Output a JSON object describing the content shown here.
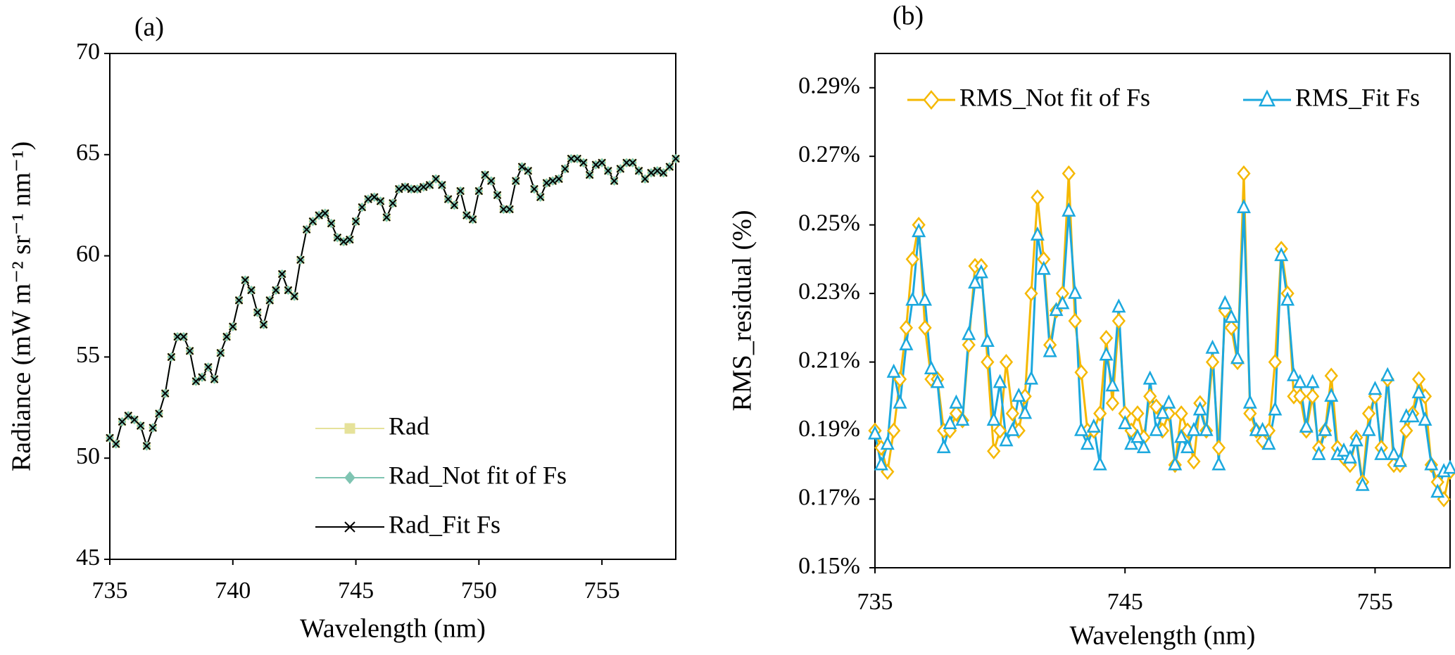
{
  "chart_data": [
    {
      "type": "line",
      "title": "(a)",
      "xlabel": "Wavelength  (nm)",
      "ylabel": "Radiance (mW m⁻² sr⁻¹ nm⁻¹)",
      "x": [
        735,
        735.25,
        735.5,
        735.75,
        736,
        736.25,
        736.5,
        736.75,
        737,
        737.25,
        737.5,
        737.75,
        738,
        738.25,
        738.5,
        738.75,
        739,
        739.25,
        739.5,
        739.75,
        740,
        740.25,
        740.5,
        740.75,
        741,
        741.25,
        741.5,
        741.75,
        742,
        742.25,
        742.5,
        742.75,
        743,
        743.25,
        743.5,
        743.75,
        744,
        744.25,
        744.5,
        744.75,
        745,
        745.25,
        745.5,
        745.75,
        746,
        746.25,
        746.5,
        746.75,
        747,
        747.25,
        747.5,
        747.75,
        748,
        748.25,
        748.5,
        748.75,
        749,
        749.25,
        749.5,
        749.75,
        750,
        750.25,
        750.5,
        750.75,
        751,
        751.25,
        751.5,
        751.75,
        752,
        752.25,
        752.5,
        752.75,
        753,
        753.25,
        753.5,
        753.75,
        754,
        754.25,
        754.5,
        754.75,
        755,
        755.25,
        755.5,
        755.75,
        756,
        756.25,
        756.5,
        756.75,
        757,
        757.25,
        757.5,
        757.75,
        758
      ],
      "series": [
        {
          "name": "Rad",
          "color": "#e6e29a",
          "marker": "square",
          "marker_fill": true,
          "values": [
            51,
            50.7,
            51.8,
            52.1,
            51.9,
            51.6,
            50.6,
            51.5,
            52.2,
            53.2,
            55,
            56,
            56,
            55.3,
            53.8,
            54,
            54.5,
            53.9,
            55.2,
            56,
            56.5,
            57.8,
            58.8,
            58.3,
            57.2,
            56.6,
            57.8,
            58.3,
            59.1,
            58.3,
            58,
            59.8,
            61.3,
            61.7,
            62,
            62.1,
            61.6,
            60.9,
            60.7,
            60.8,
            61.7,
            62.4,
            62.8,
            62.9,
            62.7,
            61.9,
            62.6,
            63.3,
            63.4,
            63.3,
            63.3,
            63.4,
            63.5,
            63.8,
            63.5,
            62.8,
            62.5,
            63.2,
            62,
            61.8,
            63.2,
            64,
            63.7,
            63,
            62.3,
            62.3,
            63.7,
            64.4,
            64.2,
            63.3,
            62.9,
            63.6,
            63.7,
            63.8,
            64.3,
            64.8,
            64.8,
            64.6,
            64,
            64.5,
            64.6,
            64.2,
            63.7,
            64.3,
            64.6,
            64.6,
            64.2,
            63.8,
            64.1,
            64.2,
            64.1,
            64.4,
            64.8
          ]
        },
        {
          "name": "Rad_Not fit of Fs",
          "color": "#7fc4b2",
          "marker": "diamond",
          "marker_fill": true,
          "values": [
            51,
            50.7,
            51.8,
            52.1,
            51.9,
            51.6,
            50.6,
            51.5,
            52.2,
            53.2,
            55,
            56,
            56,
            55.3,
            53.8,
            54,
            54.5,
            53.9,
            55.2,
            56,
            56.5,
            57.8,
            58.8,
            58.3,
            57.2,
            56.6,
            57.8,
            58.3,
            59.1,
            58.3,
            58,
            59.8,
            61.3,
            61.7,
            62,
            62.1,
            61.6,
            60.9,
            60.7,
            60.8,
            61.7,
            62.4,
            62.8,
            62.9,
            62.7,
            61.9,
            62.6,
            63.3,
            63.4,
            63.3,
            63.3,
            63.4,
            63.5,
            63.8,
            63.5,
            62.8,
            62.5,
            63.2,
            62,
            61.8,
            63.2,
            64,
            63.7,
            63,
            62.3,
            62.3,
            63.7,
            64.4,
            64.2,
            63.3,
            62.9,
            63.6,
            63.7,
            63.8,
            64.3,
            64.8,
            64.8,
            64.6,
            64,
            64.5,
            64.6,
            64.2,
            63.7,
            64.3,
            64.6,
            64.6,
            64.2,
            63.8,
            64.1,
            64.2,
            64.1,
            64.4,
            64.8
          ]
        },
        {
          "name": "Rad_Fit Fs",
          "color": "#000000",
          "marker": "x",
          "marker_fill": true,
          "values": [
            51,
            50.7,
            51.8,
            52.1,
            51.9,
            51.6,
            50.6,
            51.5,
            52.2,
            53.2,
            55,
            56,
            56,
            55.3,
            53.8,
            54,
            54.5,
            53.9,
            55.2,
            56,
            56.5,
            57.8,
            58.8,
            58.3,
            57.2,
            56.6,
            57.8,
            58.3,
            59.1,
            58.3,
            58,
            59.8,
            61.3,
            61.7,
            62,
            62.1,
            61.6,
            60.9,
            60.7,
            60.8,
            61.7,
            62.4,
            62.8,
            62.9,
            62.7,
            61.9,
            62.6,
            63.3,
            63.4,
            63.3,
            63.3,
            63.4,
            63.5,
            63.8,
            63.5,
            62.8,
            62.5,
            63.2,
            62,
            61.8,
            63.2,
            64,
            63.7,
            63,
            62.3,
            62.3,
            63.7,
            64.4,
            64.2,
            63.3,
            62.9,
            63.6,
            63.7,
            63.8,
            64.3,
            64.8,
            64.8,
            64.6,
            64,
            64.5,
            64.6,
            64.2,
            63.7,
            64.3,
            64.6,
            64.6,
            64.2,
            63.8,
            64.1,
            64.2,
            64.1,
            64.4,
            64.8
          ]
        }
      ],
      "xlim": [
        735,
        758
      ],
      "xticks": [
        735,
        740,
        745,
        750,
        755
      ],
      "ylim": [
        45,
        70
      ],
      "yticks": [
        45,
        50,
        55,
        60,
        65,
        70
      ],
      "legend": "lower center"
    },
    {
      "type": "line",
      "title": "(b)",
      "xlabel": "Wavelength  (nm)",
      "ylabel": "RMS_residual (%)",
      "x": [
        735,
        735.25,
        735.5,
        735.75,
        736,
        736.25,
        736.5,
        736.75,
        737,
        737.25,
        737.5,
        737.75,
        738,
        738.25,
        738.5,
        738.75,
        739,
        739.25,
        739.5,
        739.75,
        740,
        740.25,
        740.5,
        740.75,
        741,
        741.25,
        741.5,
        741.75,
        742,
        742.25,
        742.5,
        742.75,
        743,
        743.25,
        743.5,
        743.75,
        744,
        744.25,
        744.5,
        744.75,
        745,
        745.25,
        745.5,
        745.75,
        746,
        746.25,
        746.5,
        746.75,
        747,
        747.25,
        747.5,
        747.75,
        748,
        748.25,
        748.5,
        748.75,
        749,
        749.25,
        749.5,
        749.75,
        750,
        750.25,
        750.5,
        750.75,
        751,
        751.25,
        751.5,
        751.75,
        752,
        752.25,
        752.5,
        752.75,
        753,
        753.25,
        753.5,
        753.75,
        754,
        754.25,
        754.5,
        754.75,
        755,
        755.25,
        755.5,
        755.75,
        756,
        756.25,
        756.5,
        756.75,
        757,
        757.25,
        757.5,
        757.75,
        758
      ],
      "series": [
        {
          "name": "RMS_Not fit of Fs",
          "color": "#f5b800",
          "marker": "diamond",
          "marker_fill": false,
          "values": [
            0.19,
            0.185,
            0.178,
            0.19,
            0.205,
            0.22,
            0.24,
            0.25,
            0.22,
            0.205,
            0.205,
            0.19,
            0.19,
            0.195,
            0.193,
            0.215,
            0.238,
            0.238,
            0.21,
            0.184,
            0.19,
            0.21,
            0.195,
            0.19,
            0.2,
            0.23,
            0.258,
            0.24,
            0.215,
            0.225,
            0.23,
            0.265,
            0.222,
            0.207,
            0.19,
            0.19,
            0.195,
            0.217,
            0.198,
            0.222,
            0.195,
            0.19,
            0.195,
            0.188,
            0.2,
            0.197,
            0.19,
            0.195,
            0.18,
            0.195,
            0.19,
            0.181,
            0.198,
            0.19,
            0.21,
            0.185,
            0.225,
            0.22,
            0.21,
            0.265,
            0.195,
            0.19,
            0.187,
            0.19,
            0.21,
            0.243,
            0.23,
            0.2,
            0.2,
            0.19,
            0.2,
            0.185,
            0.19,
            0.206,
            0.185,
            0.182,
            0.18,
            0.188,
            0.175,
            0.195,
            0.2,
            0.185,
            0.205,
            0.18,
            0.18,
            0.19,
            0.195,
            0.205,
            0.2,
            0.18,
            0.175,
            0.17,
            0.178
          ]
        },
        {
          "name": "RMS_Fit Fs",
          "color": "#1ba8de",
          "marker": "triangle",
          "marker_fill": false,
          "values": [
            0.189,
            0.18,
            0.186,
            0.207,
            0.198,
            0.215,
            0.228,
            0.248,
            0.228,
            0.208,
            0.204,
            0.185,
            0.192,
            0.198,
            0.193,
            0.218,
            0.233,
            0.236,
            0.216,
            0.193,
            0.204,
            0.187,
            0.19,
            0.2,
            0.195,
            0.205,
            0.247,
            0.237,
            0.213,
            0.225,
            0.227,
            0.254,
            0.23,
            0.19,
            0.186,
            0.191,
            0.18,
            0.212,
            0.203,
            0.226,
            0.192,
            0.186,
            0.188,
            0.185,
            0.205,
            0.19,
            0.195,
            0.198,
            0.18,
            0.188,
            0.185,
            0.19,
            0.196,
            0.19,
            0.214,
            0.18,
            0.227,
            0.223,
            0.211,
            0.255,
            0.198,
            0.19,
            0.19,
            0.186,
            0.196,
            0.241,
            0.228,
            0.206,
            0.204,
            0.191,
            0.204,
            0.183,
            0.19,
            0.2,
            0.183,
            0.184,
            0.182,
            0.187,
            0.174,
            0.19,
            0.202,
            0.183,
            0.206,
            0.183,
            0.181,
            0.194,
            0.194,
            0.201,
            0.193,
            0.18,
            0.172,
            0.178,
            0.179
          ]
        }
      ],
      "xlim": [
        735,
        758
      ],
      "xticks": [
        735,
        745,
        755
      ],
      "ylim": [
        0.15,
        0.3
      ],
      "yticks": [
        {
          "value": 0.15,
          "label": "0.15%"
        },
        {
          "value": 0.17,
          "label": "0.17%"
        },
        {
          "value": 0.19,
          "label": "0.19%"
        },
        {
          "value": 0.21,
          "label": "0.21%"
        },
        {
          "value": 0.23,
          "label": "0.23%"
        },
        {
          "value": 0.25,
          "label": "0.25%"
        },
        {
          "value": 0.27,
          "label": "0.27%"
        },
        {
          "value": 0.29,
          "label": "0.29%"
        }
      ],
      "legend": "upper center"
    }
  ]
}
